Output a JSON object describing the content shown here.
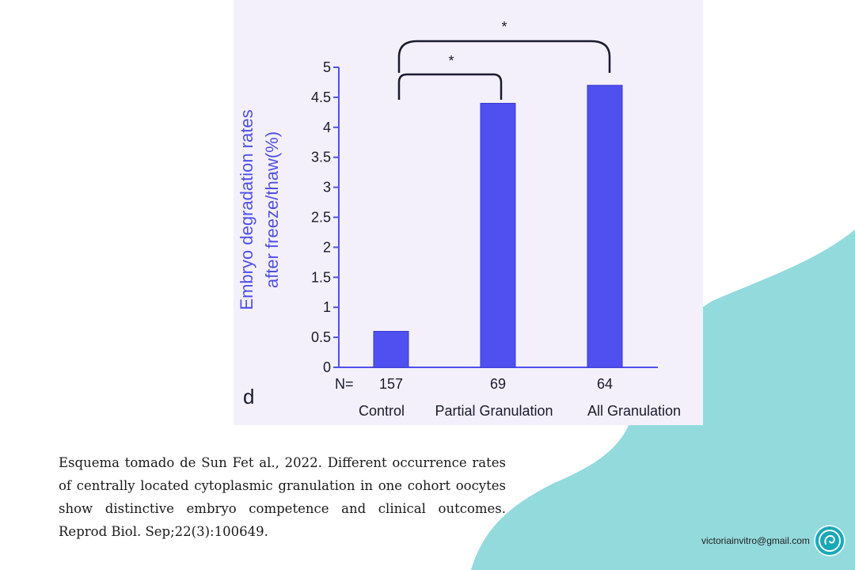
{
  "colors": {
    "bar": "#5050f0",
    "bar_edge": "#3a3ad0",
    "teal_blob": "#93dadd",
    "panel_bg": "#f3f0fb",
    "ylabel_color": "#5050e6"
  },
  "panel_letter": "d",
  "n_prefix": "N=",
  "significance_marks": [
    "*",
    "*"
  ],
  "chart_data": {
    "type": "bar",
    "categories": [
      "Control",
      "Partial Granulation",
      "All Granulation"
    ],
    "values": [
      0.6,
      4.4,
      4.7
    ],
    "n_values": [
      "157",
      "69",
      "64"
    ],
    "ylabel_lines": [
      "Embryo degradation rates",
      "after freeze/thaw(%)"
    ],
    "ylim": [
      0,
      5
    ],
    "yticks": [
      "0",
      "0.5",
      "1",
      "1.5",
      "2",
      "2.5",
      "3",
      "3.5",
      "4",
      "4.5",
      "5"
    ],
    "grid": false,
    "legend": "none"
  },
  "caption": "Esquema tomado de  Sun Fet al., 2022. Different occurrence rates of centrally located cytoplasmic granulation in one cohort oocytes show distinctive embryo competence and clinical outcomes. Reprod Biol. Sep;22(3):100649.",
  "email": "victoriainvitro@gmail.com",
  "logo_icon": "embryo-circle-icon"
}
